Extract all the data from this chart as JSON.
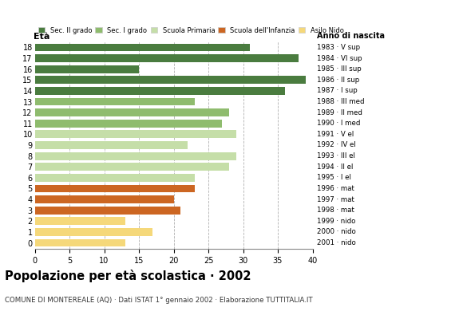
{
  "ages": [
    18,
    17,
    16,
    15,
    14,
    13,
    12,
    11,
    10,
    9,
    8,
    7,
    6,
    5,
    4,
    3,
    2,
    1,
    0
  ],
  "values": [
    31,
    38,
    15,
    39,
    36,
    23,
    28,
    27,
    29,
    22,
    29,
    28,
    23,
    23,
    20,
    21,
    13,
    17,
    13
  ],
  "anno_nascita": [
    "1983 · V sup",
    "1984 · VI sup",
    "1985 · III sup",
    "1986 · II sup",
    "1987 · I sup",
    "1988 · III med",
    "1989 · II med",
    "1990 · I med",
    "1991 · V el",
    "1992 · IV el",
    "1993 · III el",
    "1994 · II el",
    "1995 · I el",
    "1996 · mat",
    "1997 · mat",
    "1998 · mat",
    "1999 · nido",
    "2000 · nido",
    "2001 · nido"
  ],
  "colors": [
    "#4a7c3f",
    "#4a7c3f",
    "#4a7c3f",
    "#4a7c3f",
    "#4a7c3f",
    "#8fbc6e",
    "#8fbc6e",
    "#8fbc6e",
    "#c5dea8",
    "#c5dea8",
    "#c5dea8",
    "#c5dea8",
    "#c5dea8",
    "#cc6622",
    "#cc6622",
    "#cc6622",
    "#f5d87a",
    "#f5d87a",
    "#f5d87a"
  ],
  "legend_labels": [
    "Sec. II grado",
    "Sec. I grado",
    "Scuola Primaria",
    "Scuola dell'Infanzia",
    "Asilo Nido"
  ],
  "legend_colors": [
    "#4a7c3f",
    "#8fbc6e",
    "#c5dea8",
    "#cc6622",
    "#f5d87a"
  ],
  "title": "Popolazione per età scolastica · 2002",
  "subtitle": "COMUNE DI MONTEREALE (AQ) · Dati ISTAT 1° gennaio 2002 · Elaborazione TUTTITALIA.IT",
  "xlabel_eta": "Età",
  "xlabel_anno": "Anno di nascita",
  "xlim": [
    0,
    40
  ],
  "xticks": [
    0,
    5,
    10,
    15,
    20,
    25,
    30,
    35,
    40
  ],
  "grid_color": "#b0b0b0",
  "bar_height": 0.72
}
